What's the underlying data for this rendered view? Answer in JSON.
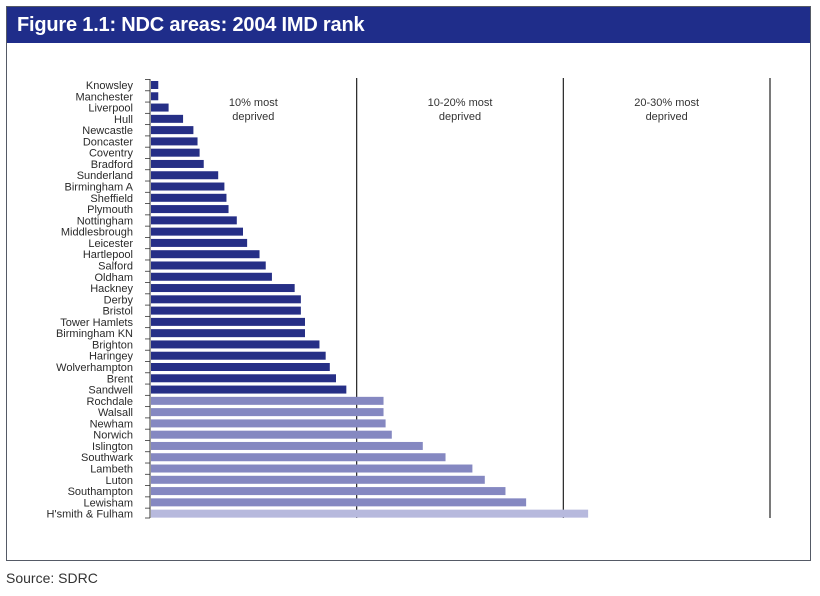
{
  "figure": {
    "title": "Figure 1.1: NDC areas: 2004 IMD rank",
    "source": "Source: SDRC"
  },
  "chart_data": {
    "type": "bar",
    "orientation": "horizontal",
    "title": "Figure 1.1: NDC areas: 2004 IMD rank",
    "xlim": [
      0,
      30
    ],
    "band_dividers": [
      10,
      20,
      30
    ],
    "bands": [
      {
        "line1": "10% most",
        "line2": "deprived"
      },
      {
        "line1": "10-20% most",
        "line2": "deprived"
      },
      {
        "line1": "20-30% most",
        "line2": "deprived"
      }
    ],
    "colors": {
      "group1": "#262f86",
      "group2": "#8588c1",
      "group3": "#b7b9dd",
      "title_bg": "#1f2d8a"
    },
    "categories": [
      "Knowsley",
      "Manchester",
      "Liverpool",
      "Hull",
      "Newcastle",
      "Doncaster",
      "Coventry",
      "Bradford",
      "Sunderland",
      "Birmingham A",
      "Sheffield",
      "Plymouth",
      "Nottingham",
      "Middlesbrough",
      "Leicester",
      "Hartlepool",
      "Salford",
      "Oldham",
      "Hackney",
      "Derby",
      "Bristol",
      "Tower Hamlets",
      "Birmingham KN",
      "Brighton",
      "Haringey",
      "Wolverhampton",
      "Brent",
      "Sandwell",
      "Rochdale",
      "Walsall",
      "Newham",
      "Norwich",
      "Islington",
      "Southwark",
      "Lambeth",
      "Luton",
      "Southampton",
      "Lewisham",
      "H'smith & Fulham"
    ],
    "values": [
      0.4,
      0.4,
      0.9,
      1.6,
      2.1,
      2.3,
      2.4,
      2.6,
      3.3,
      3.6,
      3.7,
      3.8,
      4.2,
      4.5,
      4.7,
      5.3,
      5.6,
      5.9,
      7.0,
      7.3,
      7.3,
      7.5,
      7.5,
      8.2,
      8.5,
      8.7,
      9.0,
      9.5,
      11.3,
      11.3,
      11.4,
      11.7,
      13.2,
      14.3,
      15.6,
      16.2,
      17.2,
      18.2,
      21.2
    ],
    "groups": [
      1,
      1,
      1,
      1,
      1,
      1,
      1,
      1,
      1,
      1,
      1,
      1,
      1,
      1,
      1,
      1,
      1,
      1,
      1,
      1,
      1,
      1,
      1,
      1,
      1,
      1,
      1,
      1,
      2,
      2,
      2,
      2,
      2,
      2,
      2,
      2,
      2,
      2,
      3
    ]
  }
}
